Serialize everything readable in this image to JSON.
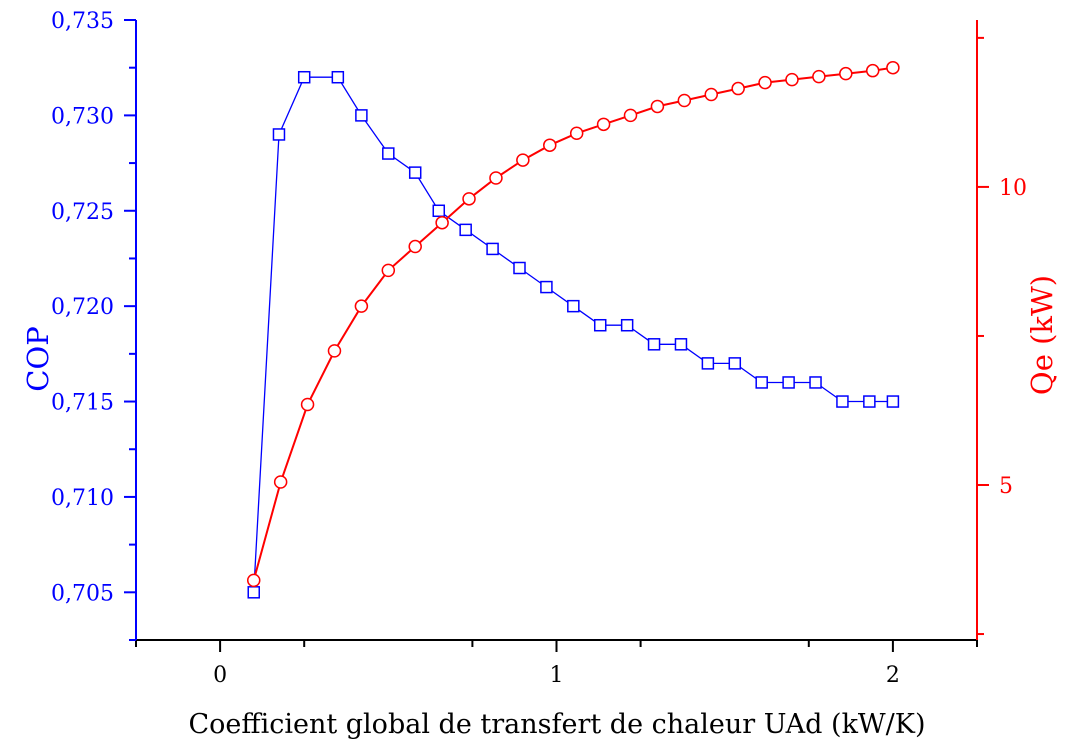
{
  "chart_data": {
    "type": "line",
    "xlabel": "Coefficient global de transfert de chaleur UAd (kW/K)",
    "ylabel_left": "COP",
    "ylabel_right": "Qe (kW)",
    "xlim": [
      -0.25,
      2.25
    ],
    "ylim_left": [
      0.7025,
      0.735
    ],
    "ylim_right": [
      2.4,
      12.8
    ],
    "x_ticks": [
      0,
      1,
      2
    ],
    "x_tick_labels": [
      "0",
      "1",
      "2"
    ],
    "y_left_ticks": [
      0.705,
      0.71,
      0.715,
      0.72,
      0.725,
      0.73,
      0.735
    ],
    "y_left_tick_labels": [
      "0,705",
      "0,710",
      "0,715",
      "0,720",
      "0,725",
      "0,730",
      "0,735"
    ],
    "y_right_ticks": [
      5,
      10
    ],
    "y_right_tick_labels": [
      "5",
      "10"
    ],
    "colors": {
      "cop": "#0000ff",
      "qe": "#ff0000",
      "axis": "#000000"
    },
    "series": [
      {
        "axis": "left",
        "marker": "square",
        "x": [
          0.1,
          0.175,
          0.25,
          0.35,
          0.42,
          0.5,
          0.58,
          0.65,
          0.73,
          0.81,
          0.89,
          0.97,
          1.05,
          1.13,
          1.21,
          1.29,
          1.37,
          1.45,
          1.53,
          1.61,
          1.69,
          1.77,
          1.85,
          1.93,
          2.0
        ],
        "values": [
          0.705,
          0.729,
          0.732,
          0.732,
          0.73,
          0.728,
          0.727,
          0.725,
          0.724,
          0.723,
          0.722,
          0.721,
          0.72,
          0.719,
          0.719,
          0.718,
          0.718,
          0.717,
          0.717,
          0.716,
          0.716,
          0.716,
          0.715,
          0.715,
          0.715
        ]
      },
      {
        "axis": "right",
        "marker": "circle",
        "x": [
          0.1,
          0.18,
          0.26,
          0.34,
          0.42,
          0.5,
          0.58,
          0.66,
          0.74,
          0.82,
          0.9,
          0.98,
          1.06,
          1.14,
          1.22,
          1.3,
          1.38,
          1.46,
          1.54,
          1.62,
          1.7,
          1.78,
          1.86,
          1.94,
          2.0
        ],
        "values": [
          3.4,
          5.05,
          6.35,
          7.25,
          8.0,
          8.6,
          9.0,
          9.4,
          9.8,
          10.15,
          10.45,
          10.7,
          10.9,
          11.05,
          11.2,
          11.35,
          11.45,
          11.55,
          11.65,
          11.75,
          11.8,
          11.85,
          11.9,
          11.95,
          12.0
        ]
      }
    ]
  }
}
